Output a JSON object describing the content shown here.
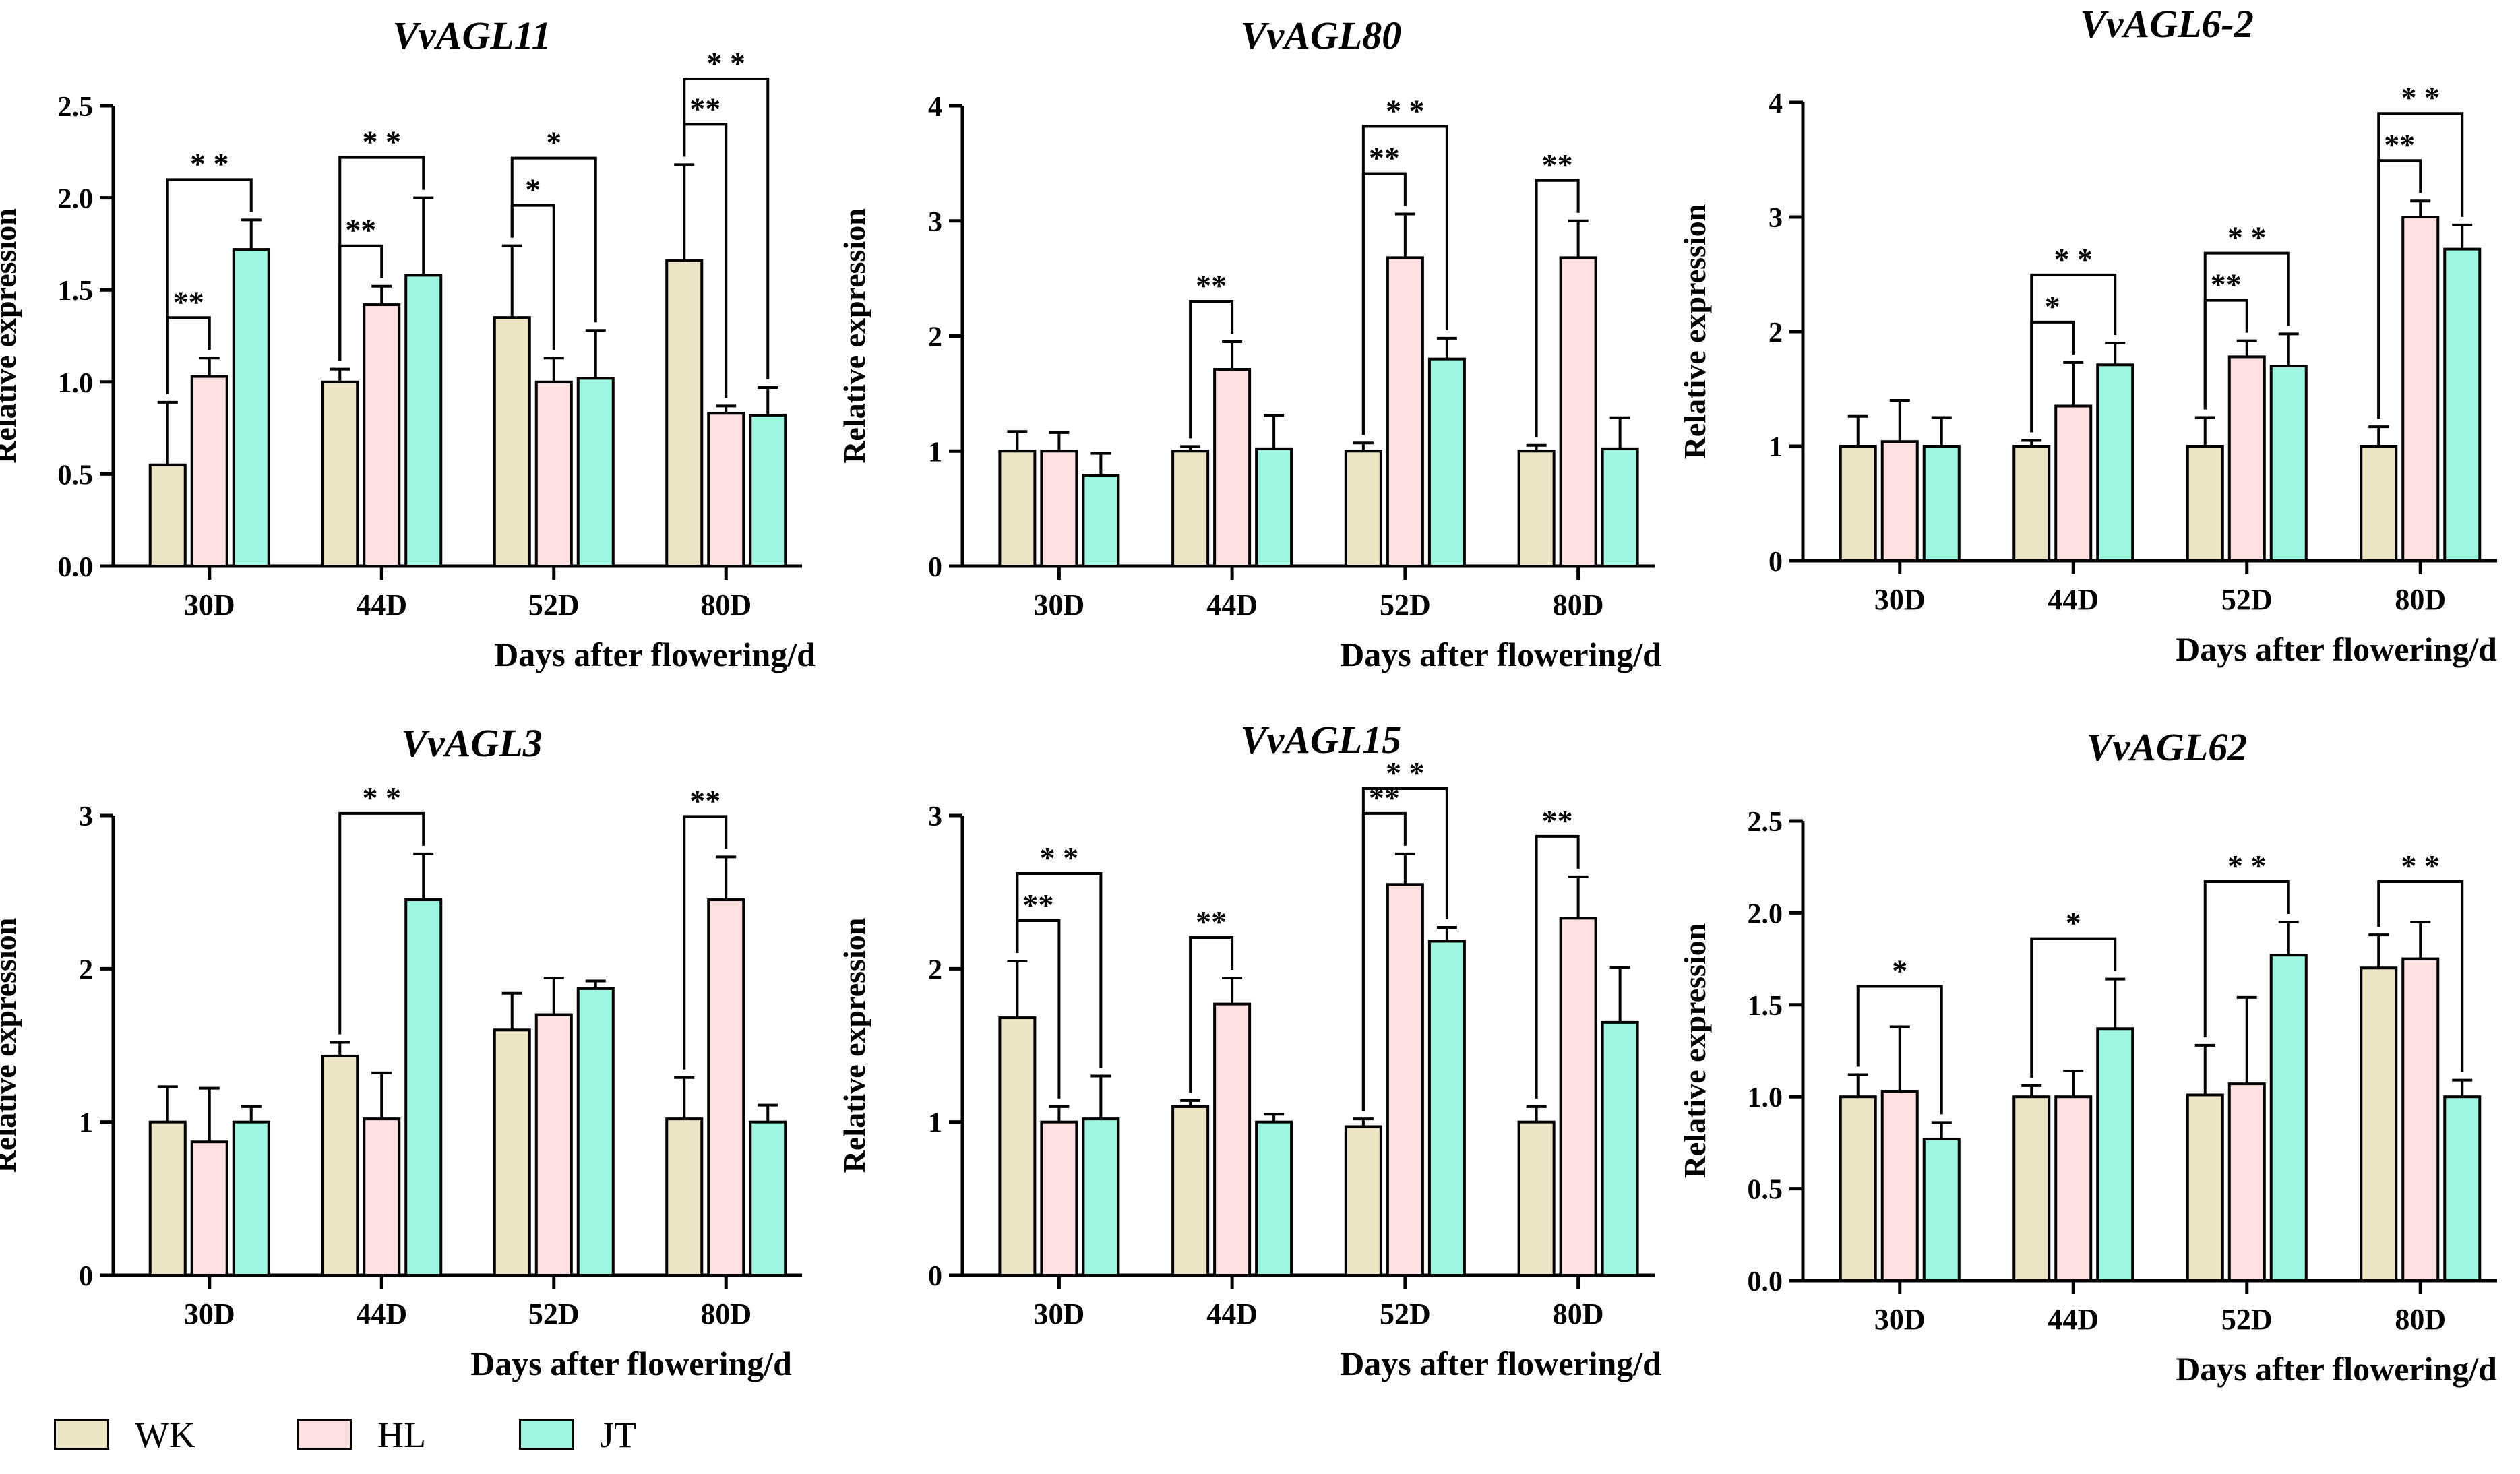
{
  "figure": {
    "series_names": [
      "WK",
      "HL",
      "JT"
    ],
    "series_colors": [
      "#ede4c6",
      "#fde0df",
      "#9ff6e0"
    ]
  },
  "chart_data": [
    {
      "type": "bar",
      "title": "VvAGL11",
      "xlabel": "Days after flowering/d",
      "ylabel": "Relative expression",
      "ylim": [
        0,
        2.5
      ],
      "yticks": [
        "0.0",
        "0.5",
        "1.0",
        "1.5",
        "2.0",
        "2.5"
      ],
      "categories": [
        "30D",
        "44D",
        "52D",
        "80D"
      ],
      "series": [
        {
          "name": "WK",
          "values": [
            0.55,
            1.0,
            1.35,
            1.66
          ],
          "errors": [
            0.34,
            0.07,
            0.39,
            0.52
          ]
        },
        {
          "name": "HL",
          "values": [
            1.03,
            1.42,
            1.0,
            0.83
          ],
          "errors": [
            0.1,
            0.1,
            0.13,
            0.04
          ]
        },
        {
          "name": "JT",
          "values": [
            1.72,
            1.58,
            1.02,
            0.82
          ],
          "errors": [
            0.16,
            0.42,
            0.26,
            0.15
          ]
        }
      ],
      "annotations": [
        {
          "category": 0,
          "from": 0,
          "to": 1,
          "text": "**"
        },
        {
          "category": 0,
          "from": 0,
          "to": 2,
          "text": "* *"
        },
        {
          "category": 1,
          "from": 0,
          "to": 1,
          "text": "**"
        },
        {
          "category": 1,
          "from": 0,
          "to": 2,
          "text": "* *"
        },
        {
          "category": 2,
          "from": 0,
          "to": 1,
          "text": "*"
        },
        {
          "category": 2,
          "from": 0,
          "to": 2,
          "text": "*"
        },
        {
          "category": 3,
          "from": 0,
          "to": 1,
          "text": "**"
        },
        {
          "category": 3,
          "from": 0,
          "to": 2,
          "text": "* *"
        }
      ]
    },
    {
      "type": "bar",
      "title": "VvAGL80",
      "xlabel": "Days after flowering/d",
      "ylabel": "Relative expression",
      "ylim": [
        0,
        4
      ],
      "yticks": [
        "0",
        "1",
        "2",
        "3",
        "4"
      ],
      "categories": [
        "30D",
        "44D",
        "52D",
        "80D"
      ],
      "series": [
        {
          "name": "WK",
          "values": [
            1.0,
            1.0,
            1.0,
            1.0
          ],
          "errors": [
            0.17,
            0.04,
            0.07,
            0.05
          ]
        },
        {
          "name": "HL",
          "values": [
            1.0,
            1.71,
            2.68,
            2.68
          ],
          "errors": [
            0.16,
            0.24,
            0.38,
            0.32
          ]
        },
        {
          "name": "JT",
          "values": [
            0.79,
            1.02,
            1.8,
            1.02
          ],
          "errors": [
            0.19,
            0.29,
            0.18,
            0.27
          ]
        }
      ],
      "annotations": [
        {
          "category": 1,
          "from": 0,
          "to": 1,
          "text": "**"
        },
        {
          "category": 2,
          "from": 0,
          "to": 1,
          "text": "**"
        },
        {
          "category": 2,
          "from": 0,
          "to": 2,
          "text": "* *"
        },
        {
          "category": 3,
          "from": 0,
          "to": 1,
          "text": "**"
        }
      ]
    },
    {
      "type": "bar",
      "title": "VvAGL6-2",
      "xlabel": "Days after flowering/d",
      "ylabel": "Relative expression",
      "ylim": [
        0,
        4
      ],
      "yticks": [
        "0",
        "1",
        "2",
        "3",
        "4"
      ],
      "categories": [
        "30D",
        "44D",
        "52D",
        "80D"
      ],
      "series": [
        {
          "name": "WK",
          "values": [
            1.0,
            1.0,
            1.0,
            1.0
          ],
          "errors": [
            0.26,
            0.05,
            0.25,
            0.17
          ]
        },
        {
          "name": "HL",
          "values": [
            1.04,
            1.35,
            1.78,
            3.0
          ],
          "errors": [
            0.36,
            0.38,
            0.14,
            0.14
          ]
        },
        {
          "name": "JT",
          "values": [
            1.0,
            1.71,
            1.7,
            2.72
          ],
          "errors": [
            0.25,
            0.19,
            0.28,
            0.21
          ]
        }
      ],
      "annotations": [
        {
          "category": 1,
          "from": 0,
          "to": 1,
          "text": "*"
        },
        {
          "category": 1,
          "from": 0,
          "to": 2,
          "text": "* *"
        },
        {
          "category": 2,
          "from": 0,
          "to": 1,
          "text": "**"
        },
        {
          "category": 2,
          "from": 0,
          "to": 2,
          "text": "* *"
        },
        {
          "category": 3,
          "from": 0,
          "to": 1,
          "text": "**"
        },
        {
          "category": 3,
          "from": 0,
          "to": 2,
          "text": "* *"
        }
      ]
    },
    {
      "type": "bar",
      "title": "VvAGL3",
      "xlabel": "Days after flowering/d",
      "ylabel": "Relative expression",
      "ylim": [
        0,
        3
      ],
      "yticks": [
        "0",
        "1",
        "2",
        "3"
      ],
      "categories": [
        "30D",
        "44D",
        "52D",
        "80D"
      ],
      "series": [
        {
          "name": "WK",
          "values": [
            1.0,
            1.43,
            1.6,
            1.02
          ],
          "errors": [
            0.23,
            0.09,
            0.24,
            0.27
          ]
        },
        {
          "name": "HL",
          "values": [
            0.87,
            1.02,
            1.7,
            2.45
          ],
          "errors": [
            0.35,
            0.3,
            0.24,
            0.28
          ]
        },
        {
          "name": "JT",
          "values": [
            1.0,
            2.45,
            1.87,
            1.0
          ],
          "errors": [
            0.1,
            0.3,
            0.05,
            0.11
          ]
        }
      ],
      "annotations": [
        {
          "category": 1,
          "from": 0,
          "to": 2,
          "text": "* *"
        },
        {
          "category": 3,
          "from": 0,
          "to": 1,
          "text": "**"
        }
      ]
    },
    {
      "type": "bar",
      "title": "VvAGL15",
      "xlabel": "Days after flowering/d",
      "ylabel": "Relative expression",
      "ylim": [
        0,
        3
      ],
      "yticks": [
        "0",
        "1",
        "2",
        "3"
      ],
      "categories": [
        "30D",
        "44D",
        "52D",
        "80D"
      ],
      "series": [
        {
          "name": "WK",
          "values": [
            1.68,
            1.1,
            0.97,
            1.0
          ],
          "errors": [
            0.37,
            0.04,
            0.05,
            0.1
          ]
        },
        {
          "name": "HL",
          "values": [
            1.0,
            1.77,
            2.55,
            2.33
          ],
          "errors": [
            0.1,
            0.17,
            0.2,
            0.27
          ]
        },
        {
          "name": "JT",
          "values": [
            1.02,
            1.0,
            2.18,
            1.65
          ],
          "errors": [
            0.28,
            0.05,
            0.09,
            0.36
          ]
        }
      ],
      "annotations": [
        {
          "category": 0,
          "from": 0,
          "to": 1,
          "text": "**"
        },
        {
          "category": 0,
          "from": 0,
          "to": 2,
          "text": "* *"
        },
        {
          "category": 1,
          "from": 0,
          "to": 1,
          "text": "**"
        },
        {
          "category": 2,
          "from": 0,
          "to": 1,
          "text": "**"
        },
        {
          "category": 2,
          "from": 0,
          "to": 2,
          "text": "* *"
        },
        {
          "category": 3,
          "from": 0,
          "to": 1,
          "text": "**"
        }
      ]
    },
    {
      "type": "bar",
      "title": "VvAGL62",
      "xlabel": "Days after flowering/d",
      "ylabel": "Relative expression",
      "ylim": [
        0,
        2.5
      ],
      "yticks": [
        "0.0",
        "0.5",
        "1.0",
        "1.5",
        "2.0",
        "2.5"
      ],
      "categories": [
        "30D",
        "44D",
        "52D",
        "80D"
      ],
      "series": [
        {
          "name": "WK",
          "values": [
            1.0,
            1.0,
            1.01,
            1.7
          ],
          "errors": [
            0.12,
            0.06,
            0.27,
            0.18
          ]
        },
        {
          "name": "HL",
          "values": [
            1.03,
            1.0,
            1.07,
            1.75
          ],
          "errors": [
            0.35,
            0.14,
            0.47,
            0.2
          ]
        },
        {
          "name": "JT",
          "values": [
            0.77,
            1.37,
            1.77,
            1.0
          ],
          "errors": [
            0.09,
            0.27,
            0.18,
            0.09
          ]
        }
      ],
      "annotations": [
        {
          "category": 0,
          "from": 0,
          "to": 2,
          "text": "*"
        },
        {
          "category": 1,
          "from": 0,
          "to": 2,
          "text": "*"
        },
        {
          "category": 2,
          "from": 0,
          "to": 2,
          "text": "* *"
        },
        {
          "category": 3,
          "from": 0,
          "to": 2,
          "text": "* *"
        }
      ]
    }
  ]
}
